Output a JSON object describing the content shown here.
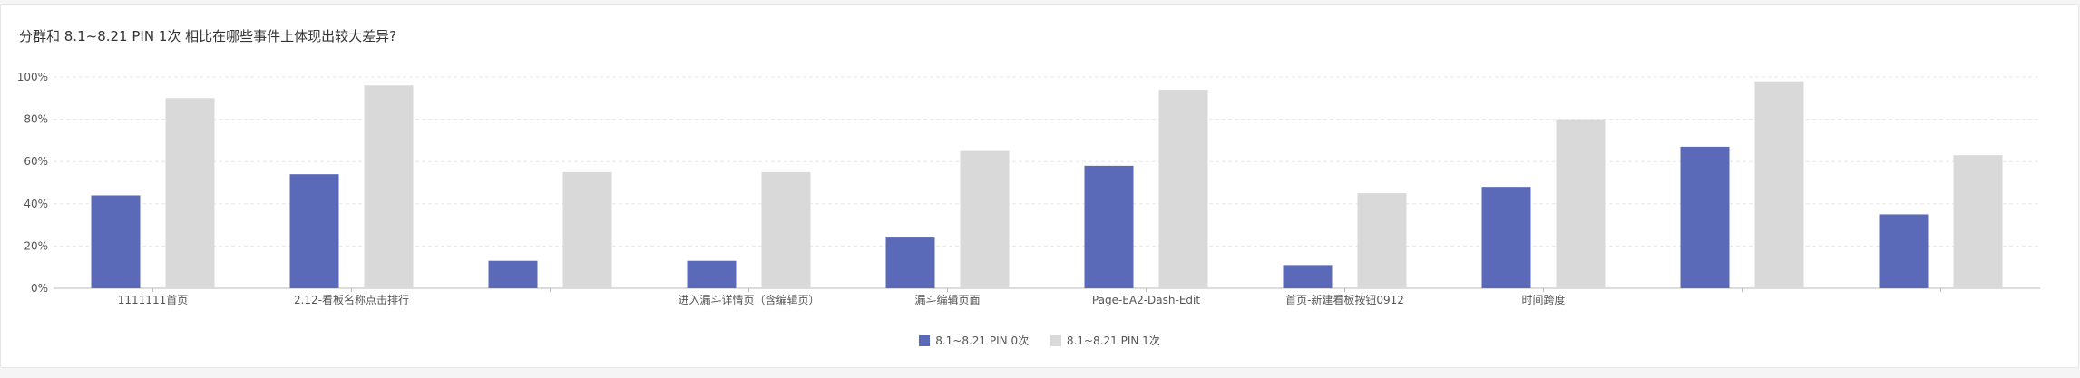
{
  "title": "分群和 8.1~8.21 PIN 1次 相比在哪些事件上体现出较大差异?",
  "chart_data": {
    "type": "bar",
    "categories": [
      "1111111首页",
      "2.12-看板名称点击排行",
      "",
      "进入漏斗详情页（含编辑页）",
      "漏斗编辑页面",
      "Page-EA2-Dash-Edit",
      "首页-新建看板按钮0912",
      "时间跨度",
      "",
      ""
    ],
    "series": [
      {
        "name": "8.1~8.21 PIN 0次",
        "color": "#5b6ab8",
        "values": [
          44,
          54,
          13,
          13,
          24,
          58,
          11,
          48,
          67,
          35
        ]
      },
      {
        "name": "8.1~8.21 PIN 1次",
        "color": "#d9d9d9",
        "values": [
          90,
          96,
          55,
          55,
          65,
          94,
          45,
          80,
          98,
          63
        ]
      }
    ],
    "yticks": [
      "0%",
      "20%",
      "40%",
      "60%",
      "80%",
      "100%"
    ],
    "ylim": [
      0,
      100
    ],
    "grid": true,
    "legend_position": "bottom-center"
  }
}
